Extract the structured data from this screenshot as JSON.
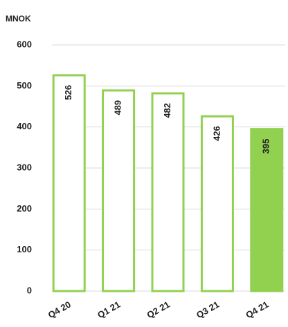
{
  "chart_data": {
    "type": "bar",
    "y_label": "MNOK",
    "categories": [
      "Q4 20",
      "Q1 21",
      "Q2 21",
      "Q3 21",
      "Q4 21"
    ],
    "values": [
      526,
      489,
      482,
      426,
      395
    ],
    "color": "#92d050",
    "fills": [
      "#ffffff",
      "#ffffff",
      "#ffffff",
      "#ffffff",
      "#92d050"
    ],
    "ylim": [
      0,
      600
    ],
    "yticks": [
      0,
      100,
      200,
      300,
      400,
      500,
      600
    ],
    "grid": true
  }
}
